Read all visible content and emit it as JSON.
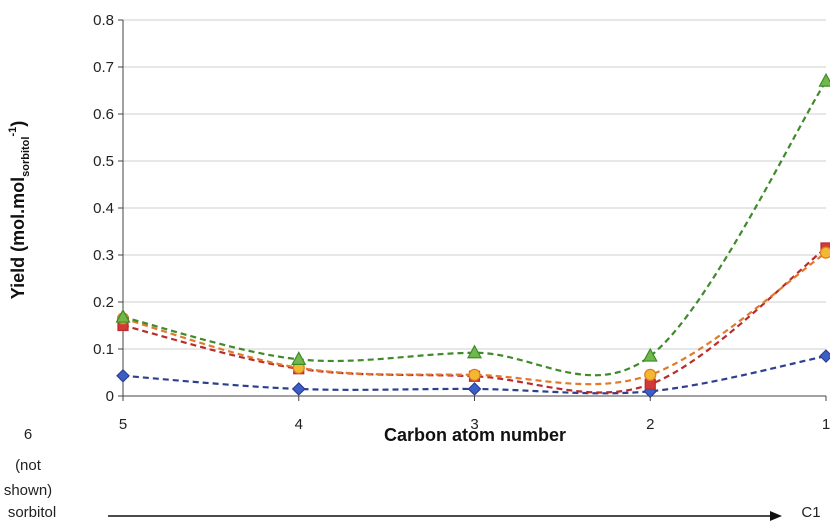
{
  "chart_data": {
    "type": "line",
    "title": "",
    "xlabel": "Carbon atom number",
    "ylabel_main": "Yield (mol.mol",
    "ylabel_sub": "sorbitol",
    "ylabel_sup": "-1",
    "ylabel_close": ")",
    "categories": [
      "5",
      "4",
      "3",
      "2",
      "1"
    ],
    "ylim": [
      0,
      0.8
    ],
    "yticks": [
      "0",
      "0.1",
      "0.2",
      "0.3",
      "0.4",
      "0.5",
      "0.6",
      "0.7",
      "0.8"
    ],
    "grid": true,
    "series": [
      {
        "color": "#2e3f8f",
        "fill": "#3a5fc8",
        "marker": "diamond",
        "values": [
          0.043,
          0.015,
          0.015,
          0.01,
          0.085
        ]
      },
      {
        "color": "#b82c2c",
        "fill": "#d23a3a",
        "marker": "square",
        "values": [
          0.15,
          0.058,
          0.042,
          0.025,
          0.315
        ]
      },
      {
        "color": "#e07a2a",
        "fill": "#f2b830",
        "marker": "circle",
        "values": [
          0.165,
          0.06,
          0.045,
          0.045,
          0.305
        ]
      },
      {
        "color": "#3f8a2a",
        "fill": "#6fb84a",
        "marker": "triangle",
        "values": [
          0.168,
          0.078,
          0.092,
          0.085,
          0.67
        ]
      }
    ]
  },
  "notes": {
    "six_label": "6",
    "not_label": "(not",
    "shown_label": "shown)",
    "sorbitol_label": "sorbitol",
    "c1_label": "C1"
  }
}
